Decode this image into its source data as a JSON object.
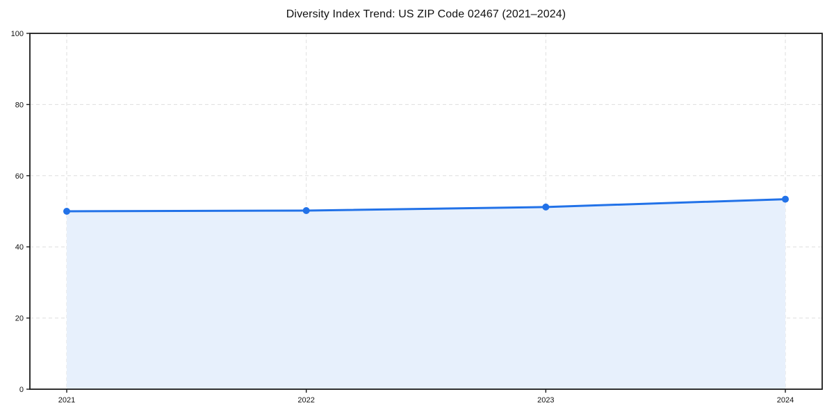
{
  "chart_data": {
    "type": "line",
    "title": "Diversity Index Trend: US ZIP Code 02467 (2021–2024)",
    "x": [
      2021,
      2022,
      2023,
      2024
    ],
    "series": [
      {
        "name": "Diversity Index",
        "values": [
          50.0,
          50.2,
          51.2,
          53.4
        ]
      }
    ],
    "xlabel": "",
    "ylabel": "",
    "ylim": [
      0,
      100
    ],
    "yticks": [
      0,
      20,
      40,
      60,
      80,
      100
    ],
    "xticks": [
      "2021",
      "2022",
      "2023",
      "2024"
    ],
    "grid": "dashed",
    "area_fill": true,
    "markers": true,
    "legend_position": "none",
    "colors": {
      "line": "#2272e8",
      "marker": "#2272e8",
      "fill": "#e7f0fc",
      "grid": "#dedede",
      "spine": "#1a1a1a",
      "tick_label": "#111111",
      "background": "#ffffff"
    }
  }
}
